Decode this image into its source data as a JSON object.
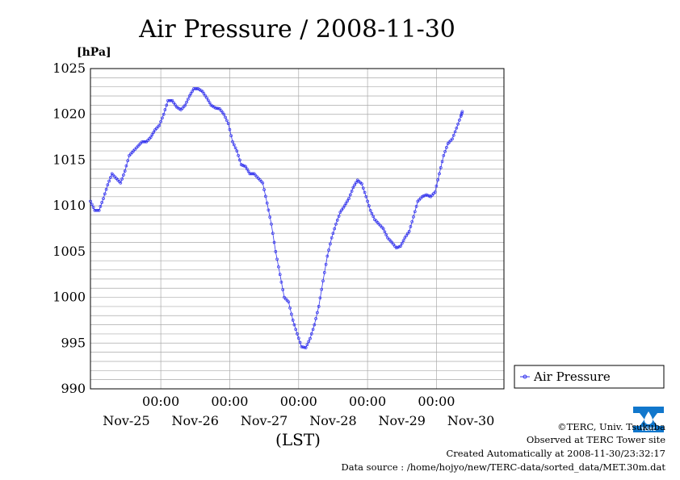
{
  "chart_data": {
    "type": "line",
    "title": "Air Pressure / 2008-11-30",
    "ylabel": "[hPa]",
    "xlabel": "(LST)",
    "ylim": [
      990,
      1025
    ],
    "yticks": [
      990,
      995,
      1000,
      1005,
      1010,
      1015,
      1020,
      1025
    ],
    "xlim": [
      "2008-11-24T23:30",
      "2008-11-30T23:30"
    ],
    "xticks": [
      {
        "time": "2008-11-26T00:00",
        "label": "00:00"
      },
      {
        "time": "2008-11-27T00:00",
        "label": "00:00"
      },
      {
        "time": "2008-11-28T00:00",
        "label": "00:00"
      },
      {
        "time": "2008-11-29T00:00",
        "label": "00:00"
      },
      {
        "time": "2008-11-30T00:00",
        "label": "00:00"
      }
    ],
    "day_labels": [
      {
        "time": "2008-11-25T12:00",
        "label": "Nov-25"
      },
      {
        "time": "2008-11-26T12:00",
        "label": "Nov-26"
      },
      {
        "time": "2008-11-27T12:00",
        "label": "Nov-27"
      },
      {
        "time": "2008-11-28T12:00",
        "label": "Nov-28"
      },
      {
        "time": "2008-11-29T12:00",
        "label": "Nov-29"
      },
      {
        "time": "2008-11-30T12:00",
        "label": "Nov-30"
      }
    ],
    "grid": true,
    "legend": "right",
    "series": [
      {
        "name": "Air Pressure",
        "color": "#3333ee",
        "points": [
          [
            "2008-11-24T23:30",
            1010.5
          ],
          [
            "2008-11-25T01:00",
            1009.5
          ],
          [
            "2008-11-25T02:30",
            1009.5
          ],
          [
            "2008-11-25T04:00",
            1010.8
          ],
          [
            "2008-11-25T05:30",
            1012.3
          ],
          [
            "2008-11-25T07:00",
            1013.5
          ],
          [
            "2008-11-25T08:30",
            1013.0
          ],
          [
            "2008-11-25T10:00",
            1012.5
          ],
          [
            "2008-11-25T11:30",
            1013.8
          ],
          [
            "2008-11-25T13:00",
            1015.5
          ],
          [
            "2008-11-25T14:30",
            1016.0
          ],
          [
            "2008-11-25T16:00",
            1016.5
          ],
          [
            "2008-11-25T17:30",
            1017.0
          ],
          [
            "2008-11-25T19:00",
            1017.0
          ],
          [
            "2008-11-25T20:30",
            1017.5
          ],
          [
            "2008-11-25T22:00",
            1018.3
          ],
          [
            "2008-11-25T23:30",
            1018.8
          ],
          [
            "2008-11-26T01:00",
            1020.0
          ],
          [
            "2008-11-26T02:30",
            1021.5
          ],
          [
            "2008-11-26T04:00",
            1021.5
          ],
          [
            "2008-11-26T05:30",
            1020.8
          ],
          [
            "2008-11-26T07:00",
            1020.5
          ],
          [
            "2008-11-26T08:30",
            1021.0
          ],
          [
            "2008-11-26T10:00",
            1022.0
          ],
          [
            "2008-11-26T11:30",
            1022.8
          ],
          [
            "2008-11-26T13:00",
            1022.8
          ],
          [
            "2008-11-26T14:30",
            1022.5
          ],
          [
            "2008-11-26T16:00",
            1021.8
          ],
          [
            "2008-11-26T17:30",
            1021.0
          ],
          [
            "2008-11-26T19:00",
            1020.7
          ],
          [
            "2008-11-26T20:30",
            1020.6
          ],
          [
            "2008-11-26T22:00",
            1020.0
          ],
          [
            "2008-11-26T23:30",
            1019.0
          ],
          [
            "2008-11-27T01:00",
            1017.0
          ],
          [
            "2008-11-27T02:30",
            1016.0
          ],
          [
            "2008-11-27T04:00",
            1014.5
          ],
          [
            "2008-11-27T05:30",
            1014.3
          ],
          [
            "2008-11-27T07:00",
            1013.5
          ],
          [
            "2008-11-27T08:30",
            1013.5
          ],
          [
            "2008-11-27T10:00",
            1013.0
          ],
          [
            "2008-11-27T11:30",
            1012.5
          ],
          [
            "2008-11-27T13:00",
            1010.3
          ],
          [
            "2008-11-27T14:30",
            1008.0
          ],
          [
            "2008-11-27T16:00",
            1005.0
          ],
          [
            "2008-11-27T17:30",
            1002.5
          ],
          [
            "2008-11-27T19:00",
            1000.0
          ],
          [
            "2008-11-27T20:30",
            999.5
          ],
          [
            "2008-11-27T22:00",
            997.5
          ],
          [
            "2008-11-27T23:30",
            996.0
          ],
          [
            "2008-11-28T01:00",
            994.6
          ],
          [
            "2008-11-28T02:30",
            994.5
          ],
          [
            "2008-11-28T04:00",
            995.5
          ],
          [
            "2008-11-28T05:30",
            997.0
          ],
          [
            "2008-11-28T07:00",
            999.0
          ],
          [
            "2008-11-28T08:30",
            1001.8
          ],
          [
            "2008-11-28T10:00",
            1004.5
          ],
          [
            "2008-11-28T11:30",
            1006.5
          ],
          [
            "2008-11-28T13:00",
            1008.0
          ],
          [
            "2008-11-28T14:30",
            1009.3
          ],
          [
            "2008-11-28T16:00",
            1010.0
          ],
          [
            "2008-11-28T17:30",
            1010.8
          ],
          [
            "2008-11-28T19:00",
            1012.0
          ],
          [
            "2008-11-28T20:30",
            1012.8
          ],
          [
            "2008-11-28T22:00",
            1012.4
          ],
          [
            "2008-11-28T23:30",
            1011.0
          ],
          [
            "2008-11-29T01:00",
            1009.5
          ],
          [
            "2008-11-29T02:30",
            1008.5
          ],
          [
            "2008-11-29T04:00",
            1008.0
          ],
          [
            "2008-11-29T05:30",
            1007.5
          ],
          [
            "2008-11-29T07:00",
            1006.5
          ],
          [
            "2008-11-29T08:30",
            1006.0
          ],
          [
            "2008-11-29T10:00",
            1005.4
          ],
          [
            "2008-11-29T11:30",
            1005.6
          ],
          [
            "2008-11-29T13:00",
            1006.5
          ],
          [
            "2008-11-29T14:30",
            1007.2
          ],
          [
            "2008-11-29T16:00",
            1008.8
          ],
          [
            "2008-11-29T17:30",
            1010.5
          ],
          [
            "2008-11-29T19:00",
            1011.0
          ],
          [
            "2008-11-29T20:30",
            1011.2
          ],
          [
            "2008-11-29T22:00",
            1011.0
          ],
          [
            "2008-11-29T23:30",
            1011.5
          ],
          [
            "2008-11-30T01:00",
            1013.5
          ],
          [
            "2008-11-30T02:30",
            1015.5
          ],
          [
            "2008-11-30T04:00",
            1016.8
          ],
          [
            "2008-11-30T05:30",
            1017.3
          ],
          [
            "2008-11-30T07:00",
            1018.5
          ],
          [
            "2008-11-30T08:30",
            1019.8
          ],
          [
            "2008-11-30T09:00",
            1020.3
          ]
        ]
      }
    ]
  },
  "footer": {
    "copyright": "©TERC, Univ. Tsukuba",
    "observed": "Observed at TERC Tower site",
    "created": "Created Automatically at 2008-11-30/23:32:17",
    "source": "Data source : /home/hojyo/new/TERC-data/sorted_data/MET.30m.dat"
  },
  "logo": {
    "text": "TERC",
    "color": "#1177cc"
  }
}
